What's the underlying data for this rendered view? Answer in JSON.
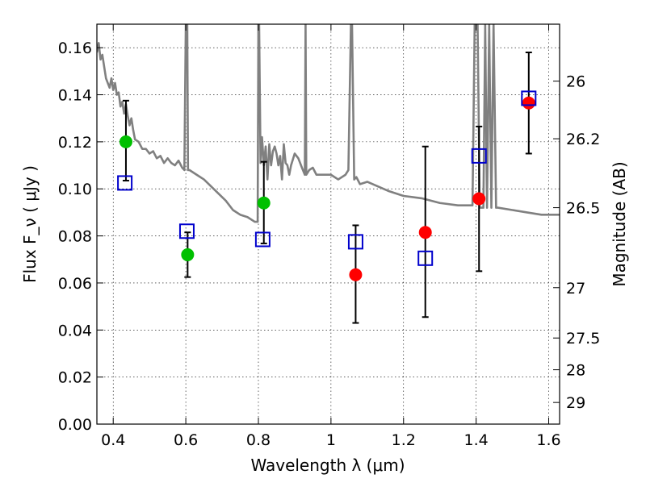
{
  "chart_data": {
    "type": "scatter",
    "title": "",
    "xlabel": "Wavelength  λ (μm)",
    "ylabel": "Flux  F_ν  ( μJy )",
    "ylabel_right": "Magnitude (AB)",
    "xlim": [
      0.355,
      1.63
    ],
    "ylim": [
      0.0,
      0.17
    ],
    "grid": true,
    "x_ticks": [
      0.4,
      0.6,
      0.8,
      1.0,
      1.2,
      1.4,
      1.6
    ],
    "x_tick_labels": [
      "0.4",
      "0.6",
      "0.8",
      "1",
      "1.2",
      "1.4",
      "1.6"
    ],
    "y_ticks": [
      0.0,
      0.02,
      0.04,
      0.06,
      0.08,
      0.1,
      0.12,
      0.14,
      0.16
    ],
    "y_tick_labels": [
      "0.00",
      "0.02",
      "0.04",
      "0.06",
      "0.08",
      "0.10",
      "0.12",
      "0.14",
      "0.16"
    ],
    "right_ticks": [
      {
        "label": "26",
        "flux": 0.1458
      },
      {
        "label": "26.2",
        "flux": 0.1213
      },
      {
        "label": "26.5",
        "flux": 0.092
      },
      {
        "label": "27",
        "flux": 0.058
      },
      {
        "label": "27.5",
        "flux": 0.0366
      },
      {
        "label": "28",
        "flux": 0.0231
      },
      {
        "label": "29",
        "flux": 0.0092
      }
    ],
    "series": [
      {
        "name": "Model SED",
        "kind": "line",
        "color": "#808080",
        "x": [
          0.355,
          0.36,
          0.365,
          0.37,
          0.375,
          0.38,
          0.39,
          0.395,
          0.4,
          0.405,
          0.41,
          0.415,
          0.42,
          0.425,
          0.43,
          0.435,
          0.44,
          0.445,
          0.45,
          0.455,
          0.46,
          0.47,
          0.48,
          0.49,
          0.5,
          0.51,
          0.52,
          0.53,
          0.54,
          0.55,
          0.56,
          0.57,
          0.58,
          0.59,
          0.596,
          0.6,
          0.604,
          0.606,
          0.61,
          0.63,
          0.65,
          0.67,
          0.69,
          0.71,
          0.73,
          0.75,
          0.77,
          0.79,
          0.798,
          0.8,
          0.802,
          0.806,
          0.81,
          0.815,
          0.82,
          0.825,
          0.83,
          0.835,
          0.84,
          0.845,
          0.85,
          0.855,
          0.86,
          0.865,
          0.87,
          0.875,
          0.88,
          0.885,
          0.89,
          0.9,
          0.91,
          0.92,
          0.928,
          0.93,
          0.932,
          0.94,
          0.95,
          0.96,
          0.98,
          1.0,
          1.02,
          1.04,
          1.048,
          1.055,
          1.058,
          1.064,
          1.07,
          1.08,
          1.1,
          1.13,
          1.16,
          1.2,
          1.25,
          1.3,
          1.35,
          1.39,
          1.396,
          1.4,
          1.404,
          1.41,
          1.42,
          1.425,
          1.43,
          1.436,
          1.442,
          1.448,
          1.455,
          1.46,
          1.5,
          1.54,
          1.58,
          1.6,
          1.63
        ],
        "y": [
          0.158,
          0.162,
          0.155,
          0.157,
          0.152,
          0.147,
          0.143,
          0.147,
          0.142,
          0.145,
          0.14,
          0.141,
          0.135,
          0.137,
          0.132,
          0.136,
          0.131,
          0.127,
          0.13,
          0.125,
          0.121,
          0.12,
          0.117,
          0.117,
          0.115,
          0.116,
          0.113,
          0.114,
          0.111,
          0.113,
          0.111,
          0.11,
          0.112,
          0.109,
          0.108,
          0.17,
          0.17,
          0.108,
          0.108,
          0.106,
          0.104,
          0.101,
          0.098,
          0.095,
          0.091,
          0.089,
          0.088,
          0.086,
          0.086,
          0.17,
          0.17,
          0.111,
          0.122,
          0.11,
          0.118,
          0.104,
          0.119,
          0.11,
          0.116,
          0.118,
          0.115,
          0.11,
          0.114,
          0.104,
          0.119,
          0.111,
          0.11,
          0.106,
          0.11,
          0.115,
          0.113,
          0.109,
          0.106,
          0.17,
          0.106,
          0.108,
          0.109,
          0.106,
          0.106,
          0.106,
          0.104,
          0.106,
          0.108,
          0.17,
          0.17,
          0.104,
          0.105,
          0.102,
          0.103,
          0.101,
          0.099,
          0.097,
          0.096,
          0.094,
          0.093,
          0.093,
          0.17,
          0.17,
          0.17,
          0.092,
          0.092,
          0.17,
          0.092,
          0.17,
          0.092,
          0.17,
          0.092,
          0.092,
          0.091,
          0.09,
          0.089,
          0.089,
          0.089
        ]
      },
      {
        "name": "Observed (green)",
        "kind": "marker",
        "marker": "circle",
        "color": "#00c000",
        "x": [
          0.435,
          0.605,
          0.815
        ],
        "y": [
          0.12,
          0.072,
          0.094
        ]
      },
      {
        "name": "Observed (red)",
        "kind": "marker",
        "marker": "circle",
        "color": "#ff0000",
        "x": [
          1.068,
          1.26,
          1.408,
          1.545
        ],
        "y": [
          0.0635,
          0.0815,
          0.0958,
          0.1365
        ]
      },
      {
        "name": "Model photometry",
        "kind": "marker",
        "marker": "open-square",
        "color": "#0000cc",
        "x": [
          0.432,
          0.603,
          0.812,
          1.068,
          1.26,
          1.408,
          1.545
        ],
        "y": [
          0.1025,
          0.082,
          0.0785,
          0.0775,
          0.0705,
          0.114,
          0.1385
        ]
      },
      {
        "name": "Error bars",
        "kind": "errorbar",
        "color": "#000000",
        "x": [
          0.435,
          0.605,
          0.815,
          1.068,
          1.26,
          1.408,
          1.545
        ],
        "y_low": [
          0.1035,
          0.0625,
          0.0768,
          0.043,
          0.0455,
          0.065,
          0.115
        ],
        "y_high": [
          0.1375,
          0.0815,
          0.1115,
          0.0845,
          0.118,
          0.1265,
          0.158
        ]
      }
    ]
  }
}
